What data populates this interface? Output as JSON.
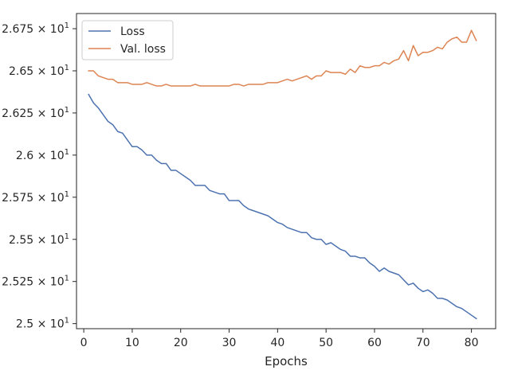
{
  "chart_data": {
    "type": "line",
    "xlabel": "Epochs",
    "ylabel": "",
    "xlim": [
      -1.5,
      85
    ],
    "ylim": [
      24.97,
      26.84
    ],
    "xticks": [
      0,
      10,
      20,
      30,
      40,
      50,
      60,
      70,
      80
    ],
    "xtick_labels": [
      "0",
      "10",
      "20",
      "30",
      "40",
      "50",
      "60",
      "70",
      "80"
    ],
    "yticks": [
      25.0,
      25.25,
      25.5,
      25.75,
      26.0,
      26.25,
      26.5,
      26.75
    ],
    "ytick_labels": [
      [
        "2.5",
        "× 10",
        "1"
      ],
      [
        "2.525",
        "× 10",
        "1"
      ],
      [
        "2.55",
        "× 10",
        "1"
      ],
      [
        "2.575",
        "× 10",
        "1"
      ],
      [
        "2.6",
        "× 10",
        "1"
      ],
      [
        "2.625",
        "× 10",
        "1"
      ],
      [
        "2.65",
        "× 10",
        "1"
      ],
      [
        "2.675",
        "× 10",
        "1"
      ]
    ],
    "grid": false,
    "legend_position": "top-left",
    "x": [
      1,
      2,
      3,
      4,
      5,
      6,
      7,
      8,
      9,
      10,
      11,
      12,
      13,
      14,
      15,
      16,
      17,
      18,
      19,
      20,
      21,
      22,
      23,
      24,
      25,
      26,
      27,
      28,
      29,
      30,
      31,
      32,
      33,
      34,
      35,
      36,
      37,
      38,
      39,
      40,
      41,
      42,
      43,
      44,
      45,
      46,
      47,
      48,
      49,
      50,
      51,
      52,
      53,
      54,
      55,
      56,
      57,
      58,
      59,
      60,
      61,
      62,
      63,
      64,
      65,
      66,
      67,
      68,
      69,
      70,
      71,
      72,
      73,
      74,
      75,
      76,
      77,
      78,
      79,
      80,
      81
    ],
    "series": [
      {
        "name": "Loss",
        "color": "#4c72b0",
        "values": [
          26.36,
          26.31,
          26.28,
          26.24,
          26.2,
          26.18,
          26.14,
          26.13,
          26.09,
          26.05,
          26.05,
          26.03,
          26.0,
          26.0,
          25.97,
          25.95,
          25.95,
          25.91,
          25.91,
          25.89,
          25.87,
          25.85,
          25.82,
          25.82,
          25.82,
          25.79,
          25.78,
          25.77,
          25.77,
          25.73,
          25.73,
          25.73,
          25.7,
          25.68,
          25.67,
          25.66,
          25.65,
          25.64,
          25.62,
          25.6,
          25.59,
          25.57,
          25.56,
          25.55,
          25.54,
          25.54,
          25.51,
          25.5,
          25.5,
          25.47,
          25.48,
          25.46,
          25.44,
          25.43,
          25.4,
          25.4,
          25.39,
          25.39,
          25.36,
          25.34,
          25.31,
          25.33,
          25.31,
          25.3,
          25.29,
          25.26,
          25.23,
          25.24,
          25.21,
          25.19,
          25.2,
          25.18,
          25.15,
          25.15,
          25.14,
          25.12,
          25.1,
          25.09,
          25.07,
          25.05,
          25.03
        ]
      },
      {
        "name": "Val. loss",
        "color": "#dd8452",
        "values": [
          26.5,
          26.5,
          26.47,
          26.46,
          26.45,
          26.45,
          26.43,
          26.43,
          26.43,
          26.42,
          26.42,
          26.42,
          26.43,
          26.42,
          26.41,
          26.41,
          26.42,
          26.41,
          26.41,
          26.41,
          26.41,
          26.41,
          26.42,
          26.41,
          26.41,
          26.41,
          26.41,
          26.41,
          26.41,
          26.41,
          26.42,
          26.42,
          26.41,
          26.42,
          26.42,
          26.42,
          26.42,
          26.43,
          26.43,
          26.43,
          26.44,
          26.45,
          26.44,
          26.45,
          26.46,
          26.47,
          26.45,
          26.47,
          26.47,
          26.5,
          26.49,
          26.49,
          26.49,
          26.48,
          26.51,
          26.49,
          26.53,
          26.52,
          26.52,
          26.53,
          26.53,
          26.55,
          26.54,
          26.56,
          26.57,
          26.62,
          26.56,
          26.65,
          26.59,
          26.61,
          26.61,
          26.62,
          26.64,
          26.63,
          26.67,
          26.69,
          26.7,
          26.67,
          26.67,
          26.74,
          26.68
        ]
      }
    ]
  }
}
